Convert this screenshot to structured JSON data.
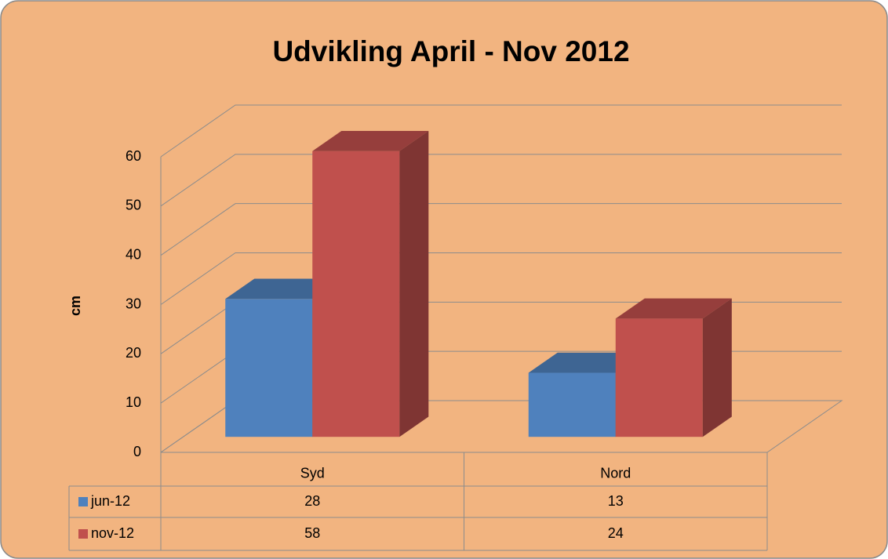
{
  "chart_data": {
    "type": "bar3d",
    "title": "Udvikling April - Nov 2012",
    "y_label": "cm",
    "categories": [
      "Syd",
      "Nord"
    ],
    "series": [
      {
        "name": "jun-12",
        "color": "#4f81bd",
        "values": [
          28,
          13
        ]
      },
      {
        "name": "nov-12",
        "color": "#c0504d",
        "values": [
          58,
          24
        ]
      }
    ],
    "ylim": [
      0,
      60
    ],
    "yticks": [
      0,
      10,
      20,
      30,
      40,
      50,
      60
    ],
    "grid": true,
    "data_table": true
  }
}
